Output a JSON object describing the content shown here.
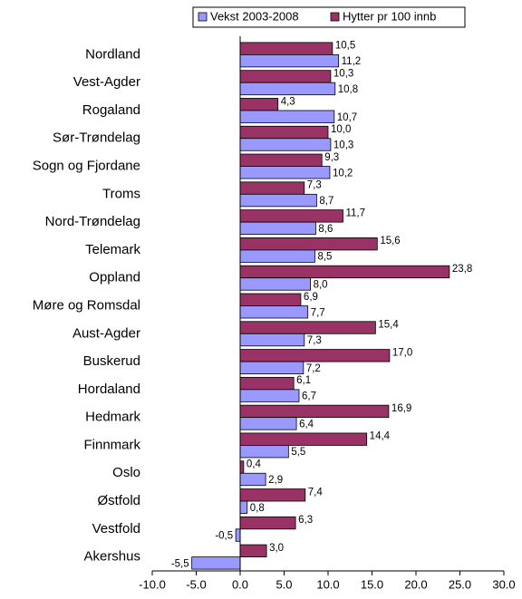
{
  "chart_data": {
    "type": "hbar",
    "categories": [
      "Nordland",
      "Vest-Agder",
      "Rogaland",
      "Sør-Trøndelag",
      "Sogn og Fjordane",
      "Troms",
      "Nord-Trøndelag",
      "Telemark",
      "Oppland",
      "Møre og Romsdal",
      "Aust-Agder",
      "Buskerud",
      "Hordaland",
      "Hedmark",
      "Finnmark",
      "Oslo",
      "Østfold",
      "Vestfold",
      "Akershus"
    ],
    "series": [
      {
        "name": "Vekst 2003-2008",
        "color": "#9999ff",
        "values": [
          11.2,
          10.8,
          10.7,
          10.3,
          10.2,
          8.7,
          8.6,
          8.5,
          8.0,
          7.7,
          7.3,
          7.2,
          6.7,
          6.4,
          5.5,
          2.9,
          0.8,
          -0.5,
          -5.5
        ],
        "value_labels": [
          "11,2",
          "10,8",
          "10,7",
          "10,3",
          "10,2",
          "8,7",
          "8,6",
          "8,5",
          "8,0",
          "7,7",
          "7,3",
          "7,2",
          "6,7",
          "6,4",
          "5,5",
          "2,9",
          "0,8",
          "-0,5",
          "-5,5"
        ]
      },
      {
        "name": "Hytter pr 100 innb",
        "color": "#993366",
        "values": [
          10.5,
          10.3,
          4.3,
          10.0,
          9.3,
          7.3,
          11.7,
          15.6,
          23.8,
          6.9,
          15.4,
          17.0,
          6.1,
          16.9,
          14.4,
          0.4,
          7.4,
          6.3,
          3.0
        ],
        "value_labels": [
          "10,5",
          "10,3",
          "4,3",
          "10,0",
          "9,3",
          "7,3",
          "11,7",
          "15,6",
          "23,8",
          "6,9",
          "15,4",
          "17,0",
          "6,1",
          "16,9",
          "14,4",
          "0,4",
          "7,4",
          "6,3",
          "3,0"
        ]
      }
    ],
    "xlim": [
      -10,
      30
    ],
    "xticks": [
      {
        "value": -10,
        "label": "-10.0"
      },
      {
        "value": -5,
        "label": "-5.0"
      },
      {
        "value": 0,
        "label": "0.0"
      },
      {
        "value": 5,
        "label": "5.0"
      },
      {
        "value": 10,
        "label": "10.0"
      },
      {
        "value": 15,
        "label": "15.0"
      },
      {
        "value": 20,
        "label": "20.0"
      },
      {
        "value": 25,
        "label": "25.0"
      },
      {
        "value": 30,
        "label": "30.0"
      }
    ],
    "legend": "top"
  }
}
